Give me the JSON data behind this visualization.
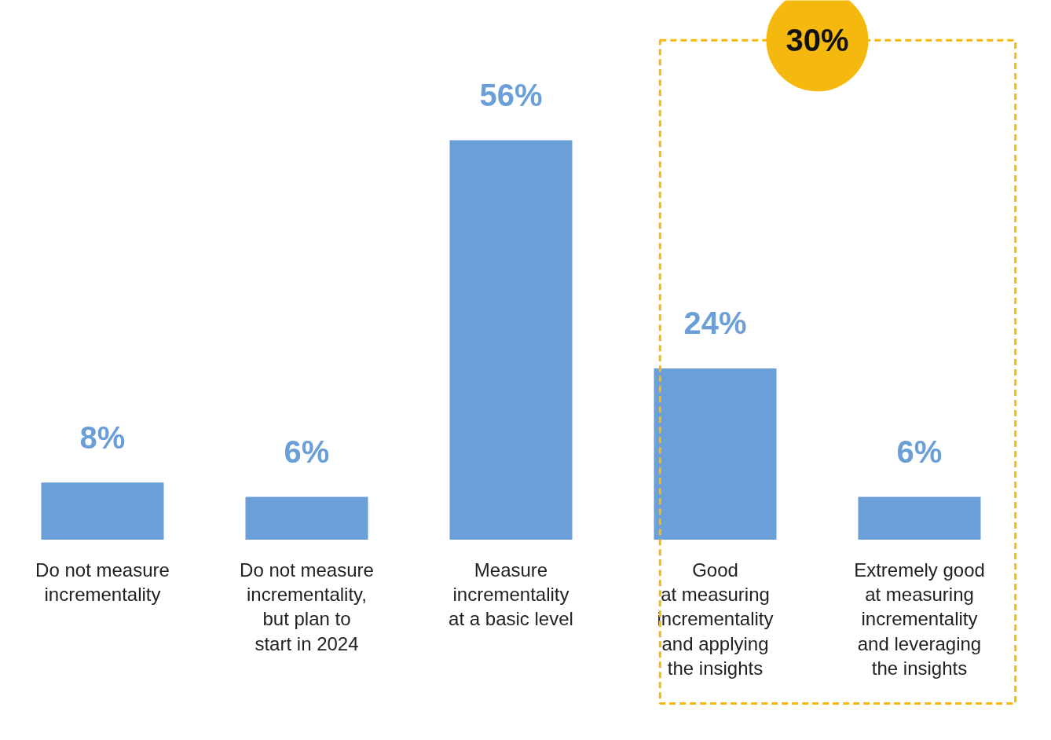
{
  "chart_data": {
    "type": "bar",
    "categories": [
      "Do not measure\nincrementality",
      "Do not measure\nincrementality,\nbut plan to\nstart in 2024",
      "Measure\nincrementality\nat a basic level",
      "Good\nat measuring\nincrementality\nand applying\nthe insights",
      "Extremely good\nat measuring\nincrementality\nand leveraging\nthe insights"
    ],
    "values": [
      8,
      6,
      56,
      24,
      6
    ],
    "value_labels": [
      "8%",
      "6%",
      "56%",
      "24%",
      "6%"
    ],
    "color": "#6a9fd8",
    "annotations": [
      "30%"
    ]
  }
}
